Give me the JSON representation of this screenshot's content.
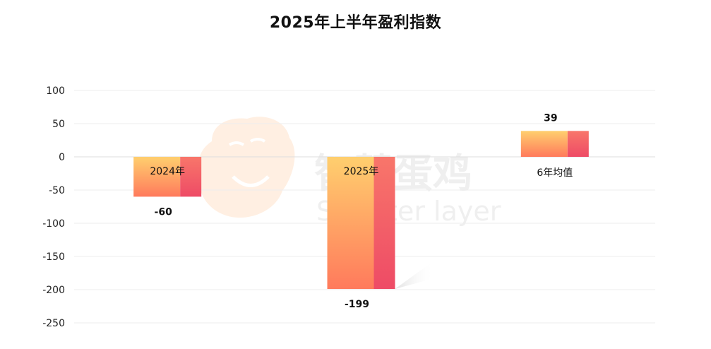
{
  "chart_data": {
    "type": "bar",
    "title": "2025年上半年盈利指数",
    "categories": [
      "2024年",
      "2025年",
      "6年均值"
    ],
    "values": [
      -60,
      -199,
      39
    ],
    "ylim": [
      -250,
      100
    ],
    "yticks": [
      100,
      50,
      0,
      -50,
      -100,
      -150,
      -200,
      -250
    ],
    "grid": true,
    "xlabel": "",
    "ylabel": "",
    "colors": {
      "bar_light": "#ffcf6e",
      "bar_mid": "#ff9a5c",
      "bar_dark": "#f04d62",
      "grid": "#eeeeee"
    }
  },
  "watermark": {
    "cn": "智慧蛋鸡",
    "en": "Smarter layer"
  }
}
